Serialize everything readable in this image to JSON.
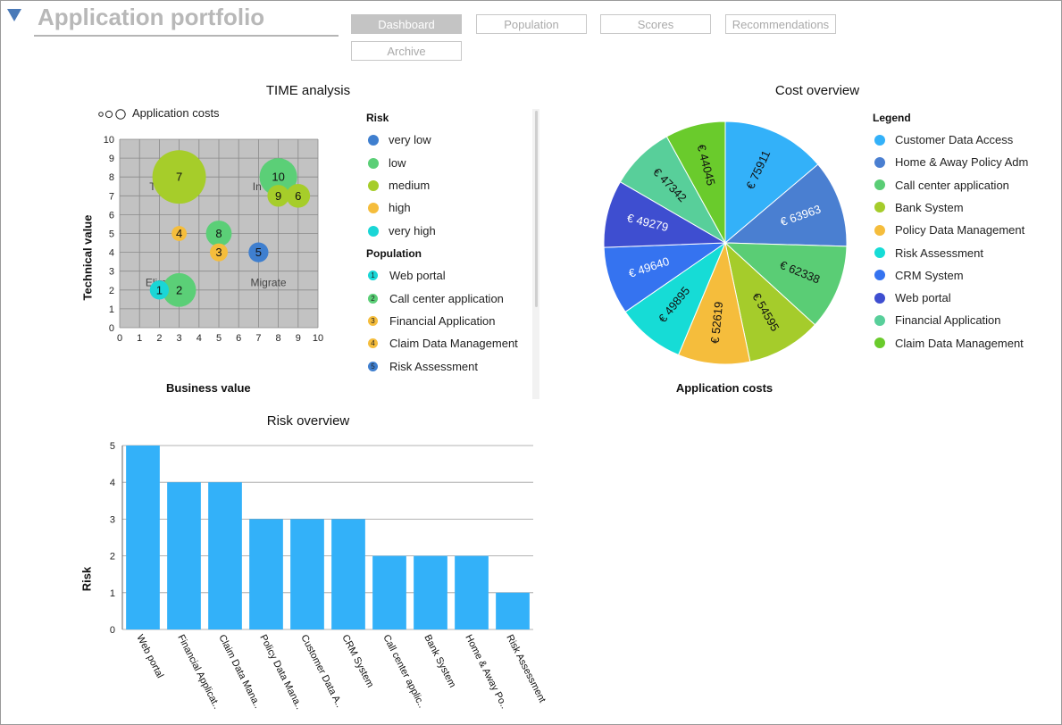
{
  "header": {
    "title": "Application portfolio",
    "tabs": [
      {
        "label": "Dashboard",
        "active": true
      },
      {
        "label": "Population",
        "active": false
      },
      {
        "label": "Scores",
        "active": false
      },
      {
        "label": "Recommendations",
        "active": false
      },
      {
        "label": "Archive",
        "active": false
      }
    ]
  },
  "time_analysis": {
    "title": "TIME analysis",
    "size_legend": "Application costs",
    "risk_legend_title": "Risk",
    "risk_levels": [
      {
        "label": "very low",
        "color": "#3f7fcf"
      },
      {
        "label": "low",
        "color": "#5bcf77"
      },
      {
        "label": "medium",
        "color": "#a6cd2a"
      },
      {
        "label": "high",
        "color": "#f5bd3c"
      },
      {
        "label": "very high",
        "color": "#1ad6d6"
      }
    ],
    "population_legend_title": "Population",
    "population": [
      {
        "num": "1",
        "label": "Web portal",
        "color": "#1ad6d6"
      },
      {
        "num": "2",
        "label": "Call center application",
        "color": "#5bcf77"
      },
      {
        "num": "3",
        "label": "Financial Application",
        "color": "#f5bd3c"
      },
      {
        "num": "4",
        "label": "Claim Data Management",
        "color": "#f5bd3c"
      },
      {
        "num": "5",
        "label": "Risk Assessment",
        "color": "#3f7fcf"
      }
    ]
  },
  "chart_data": [
    {
      "type": "scatter",
      "title": "TIME analysis",
      "xlabel": "Business value",
      "ylabel": "Technical value",
      "xlim": [
        0,
        10
      ],
      "ylim": [
        0,
        10
      ],
      "xticks": [
        "0",
        "1",
        "2",
        "3",
        "4",
        "5",
        "6",
        "7",
        "8",
        "9",
        "10"
      ],
      "yticks": [
        "0",
        "1",
        "2",
        "3",
        "4",
        "5",
        "6",
        "7",
        "8",
        "9",
        "10"
      ],
      "grid": true,
      "quadrant_labels": [
        {
          "text": "T",
          "x": 1.5,
          "y": 7.5
        },
        {
          "text": "In",
          "x": 6.7,
          "y": 7.5
        },
        {
          "text": "Elim",
          "x": 1.3,
          "y": 2.4
        },
        {
          "text": "Migrate",
          "x": 6.6,
          "y": 2.4
        }
      ],
      "points": [
        {
          "label": "7",
          "x": 3,
          "y": 8,
          "size": 1.35,
          "color": "#a6cd2a"
        },
        {
          "label": "10",
          "x": 8,
          "y": 8,
          "size": 0.95,
          "color": "#5bcf77"
        },
        {
          "label": "9",
          "x": 8,
          "y": 7,
          "size": 0.55,
          "color": "#a6cd2a"
        },
        {
          "label": "6",
          "x": 9,
          "y": 7,
          "size": 0.6,
          "color": "#a6cd2a"
        },
        {
          "label": "4",
          "x": 3,
          "y": 5,
          "size": 0.38,
          "color": "#f5bd3c"
        },
        {
          "label": "8",
          "x": 5,
          "y": 5,
          "size": 0.65,
          "color": "#5bcf77"
        },
        {
          "label": "3",
          "x": 5,
          "y": 4,
          "size": 0.45,
          "color": "#f5bd3c"
        },
        {
          "label": "5",
          "x": 7,
          "y": 4,
          "size": 0.5,
          "color": "#3f7fcf"
        },
        {
          "label": "2",
          "x": 3,
          "y": 2,
          "size": 0.85,
          "color": "#5bcf77"
        },
        {
          "label": "1",
          "x": 2,
          "y": 2,
          "size": 0.48,
          "color": "#1ad6d6"
        }
      ]
    },
    {
      "type": "pie",
      "title": "Cost overview",
      "xlabel": "Application costs",
      "legend_title": "Legend",
      "slices": [
        {
          "name": "Customer Data Access",
          "value": 75911,
          "label": "€ 75911",
          "color": "#33b1f9"
        },
        {
          "name": "Home & Away Policy Adm",
          "value": 63963,
          "label": "€ 63963",
          "color": "#4a7fd1"
        },
        {
          "name": "Call center application",
          "value": 62338,
          "label": "€ 62338",
          "color": "#5acd75"
        },
        {
          "name": "Bank System",
          "value": 54595,
          "label": "€ 54595",
          "color": "#a5cc2b"
        },
        {
          "name": "Policy Data Management",
          "value": 52619,
          "label": "€ 52619",
          "color": "#f5bd3c"
        },
        {
          "name": "Risk Assessment",
          "value": 49895,
          "label": "€ 49895",
          "color": "#16dcd6"
        },
        {
          "name": "CRM System",
          "value": 49640,
          "label": "€ 49640",
          "color": "#3573f0"
        },
        {
          "name": "Web portal",
          "value": 49279,
          "label": "€ 49279",
          "color": "#3e4ed0"
        },
        {
          "name": "Financial Application",
          "value": 47342,
          "label": "€ 47342",
          "color": "#58cf9a"
        },
        {
          "name": "Claim Data Management",
          "value": 44045,
          "label": "€ 44045",
          "color": "#6acb2c"
        }
      ]
    },
    {
      "type": "bar",
      "title": "Risk overview",
      "ylabel": "Risk",
      "ylim": [
        0,
        5
      ],
      "yticks": [
        "0",
        "1",
        "2",
        "3",
        "4",
        "5"
      ],
      "color": "#33b1f9",
      "categories": [
        "Web portal",
        "Financial Applicat..",
        "Claim Data Mana..",
        "Policy Data Mana..",
        "Customer Data A..",
        "CRM System",
        "Call center applic..",
        "Bank System",
        "Home & Away Po..",
        "Risk Assessment"
      ],
      "values": [
        5,
        4,
        4,
        3,
        3,
        3,
        2,
        2,
        2,
        1
      ]
    }
  ]
}
